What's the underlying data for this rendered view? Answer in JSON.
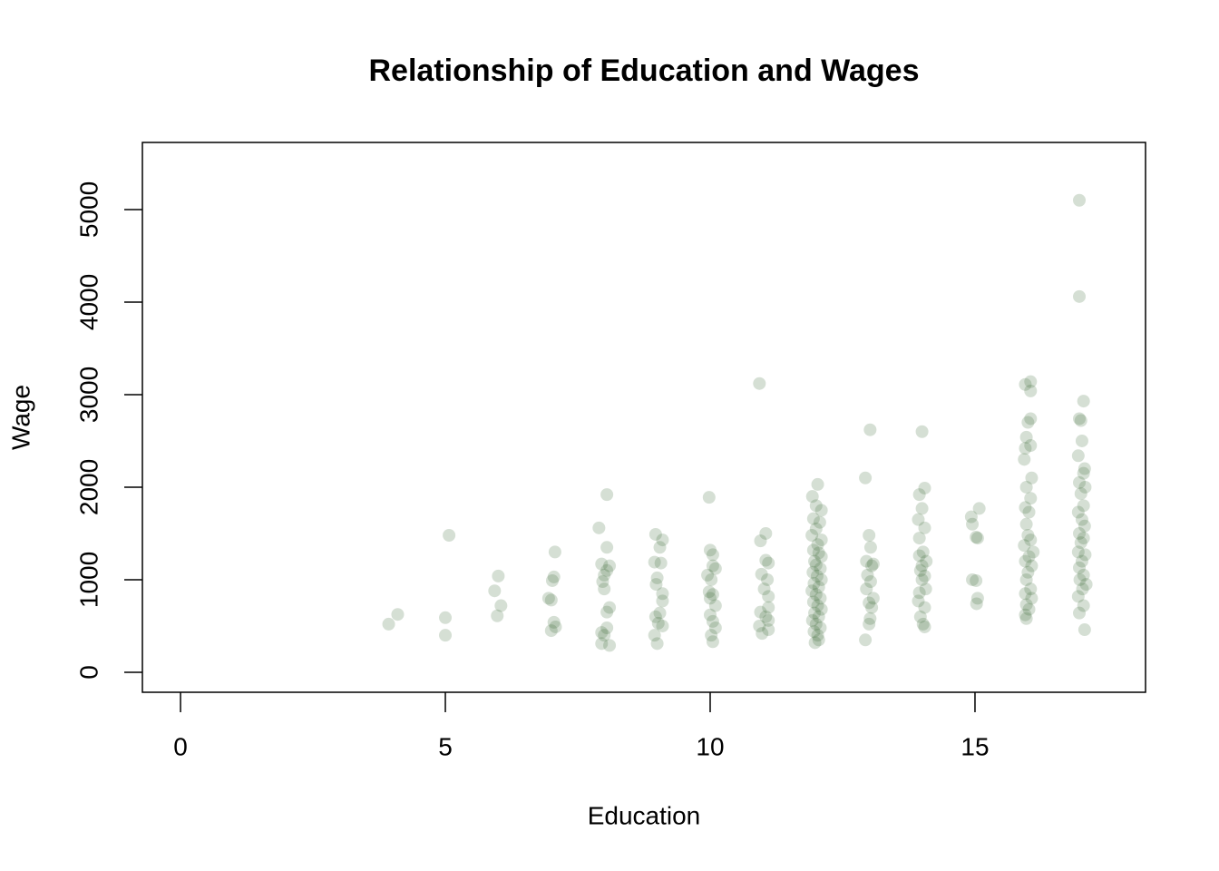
{
  "chart_data": {
    "type": "scatter",
    "title": "Relationship of Education and Wages",
    "x_label": "Education",
    "y_label": "Wage",
    "x": [
      3.93,
      4.1,
      5.0,
      5.0,
      5.07,
      5.93,
      6.0,
      6.05,
      5.98,
      6.95,
      7.0,
      7.07,
      7.05,
      7.02,
      7.05,
      7.0,
      7.08,
      8.05,
      7.9,
      8.05,
      7.95,
      8.1,
      8.05,
      8.0,
      7.97,
      8.0,
      8.1,
      8.05,
      8.05,
      7.95,
      7.95,
      8.1,
      8.0,
      8.97,
      9.1,
      9.05,
      8.95,
      9.07,
      9.0,
      8.98,
      9.1,
      9.1,
      9.05,
      8.97,
      9.02,
      9.1,
      8.95,
      9.0,
      9.98,
      10.0,
      10.05,
      10.05,
      10.1,
      9.95,
      10.02,
      9.98,
      10.05,
      10.0,
      10.1,
      10.0,
      10.05,
      10.1,
      10.02,
      10.05,
      10.93,
      11.05,
      10.95,
      11.05,
      11.1,
      10.97,
      11.08,
      11.02,
      11.1,
      11.1,
      10.95,
      11.05,
      11.1,
      10.93,
      11.1,
      10.98,
      12.03,
      11.93,
      12.0,
      12.1,
      11.95,
      12.07,
      12.0,
      11.92,
      12.1,
      12.03,
      11.95,
      12.05,
      12.1,
      11.97,
      12.0,
      12.08,
      11.94,
      12.02,
      12.1,
      11.96,
      12.05,
      11.92,
      12.0,
      12.08,
      11.95,
      12.03,
      12.1,
      11.97,
      12.05,
      11.93,
      12.0,
      12.08,
      11.96,
      12.03,
      12.05,
      11.98,
      13.02,
      12.93,
      13.0,
      13.03,
      12.95,
      13.08,
      13.05,
      12.97,
      13.03,
      12.95,
      13.08,
      13.0,
      13.05,
      13.02,
      13.0,
      12.93,
      14.0,
      14.05,
      13.95,
      14.0,
      13.93,
      14.05,
      13.95,
      14.02,
      13.95,
      14.08,
      14.0,
      13.97,
      14.05,
      14.0,
      14.07,
      13.95,
      13.93,
      14.05,
      13.97,
      14.02,
      14.05,
      14.93,
      14.95,
      15.08,
      15.05,
      15.02,
      14.95,
      15.02,
      15.05,
      15.03,
      16.05,
      15.95,
      16.05,
      16.05,
      16.0,
      15.97,
      16.05,
      15.95,
      15.93,
      16.07,
      15.97,
      16.05,
      15.95,
      16.02,
      15.97,
      16.0,
      16.05,
      15.93,
      16.1,
      16.02,
      15.95,
      16.07,
      16.0,
      15.97,
      16.05,
      15.95,
      16.07,
      15.97,
      16.02,
      15.95,
      15.97,
      16.97,
      16.97,
      17.05,
      16.97,
      17.0,
      17.02,
      16.95,
      17.07,
      17.05,
      16.97,
      17.08,
      17.0,
      17.05,
      16.95,
      17.02,
      17.07,
      16.97,
      17.05,
      17.0,
      16.95,
      17.08,
      17.02,
      16.97,
      17.05,
      16.98,
      17.1,
      17.03,
      16.95,
      17.05,
      16.97,
      17.07
    ],
    "values": [
      520,
      625,
      590,
      400,
      1480,
      880,
      1040,
      720,
      610,
      800,
      780,
      1300,
      1030,
      990,
      540,
      450,
      490,
      1920,
      1560,
      1350,
      1170,
      1150,
      1100,
      1050,
      980,
      900,
      700,
      650,
      480,
      430,
      310,
      290,
      400,
      1490,
      1430,
      1350,
      1190,
      1180,
      1020,
      950,
      850,
      770,
      640,
      600,
      530,
      500,
      400,
      310,
      1890,
      1320,
      1270,
      1150,
      1120,
      1050,
      1000,
      870,
      840,
      800,
      720,
      620,
      550,
      480,
      400,
      330,
      3120,
      1500,
      1420,
      1210,
      1180,
      1060,
      1000,
      900,
      820,
      700,
      650,
      600,
      560,
      500,
      460,
      420,
      2030,
      1900,
      1800,
      1750,
      1660,
      1620,
      1550,
      1480,
      1430,
      1380,
      1320,
      1290,
      1250,
      1200,
      1160,
      1120,
      1080,
      1040,
      1000,
      960,
      920,
      880,
      840,
      800,
      760,
      720,
      680,
      640,
      600,
      560,
      520,
      480,
      440,
      400,
      350,
      320,
      2620,
      2100,
      1480,
      1350,
      1200,
      1170,
      1150,
      1050,
      980,
      900,
      800,
      750,
      700,
      580,
      520,
      350,
      2600,
      1990,
      1920,
      1770,
      1650,
      1560,
      1450,
      1300,
      1260,
      1200,
      1150,
      1100,
      1040,
      1000,
      900,
      860,
      770,
      700,
      600,
      520,
      490,
      1680,
      1600,
      1770,
      1450,
      1460,
      1000,
      990,
      800,
      740,
      3140,
      3110,
      3040,
      2740,
      2700,
      2540,
      2450,
      2420,
      2300,
      2100,
      2000,
      1880,
      1780,
      1730,
      1600,
      1480,
      1430,
      1370,
      1300,
      1250,
      1200,
      1150,
      1080,
      1000,
      900,
      850,
      800,
      730,
      680,
      620,
      580,
      5100,
      4060,
      2930,
      2740,
      2720,
      2500,
      2340,
      2200,
      2150,
      2050,
      2000,
      1930,
      1800,
      1730,
      1650,
      1580,
      1500,
      1450,
      1400,
      1300,
      1270,
      1200,
      1130,
      1050,
      1000,
      950,
      900,
      820,
      720,
      640,
      460
    ],
    "color": "#2e5e26",
    "opacity": 0.2,
    "xlim": [
      -0.72,
      18.22
    ],
    "ylim": [
      -216,
      5725
    ],
    "xticks": [
      0,
      5,
      10,
      15
    ],
    "yticks": [
      0,
      1000,
      2000,
      3000,
      4000,
      5000
    ]
  }
}
